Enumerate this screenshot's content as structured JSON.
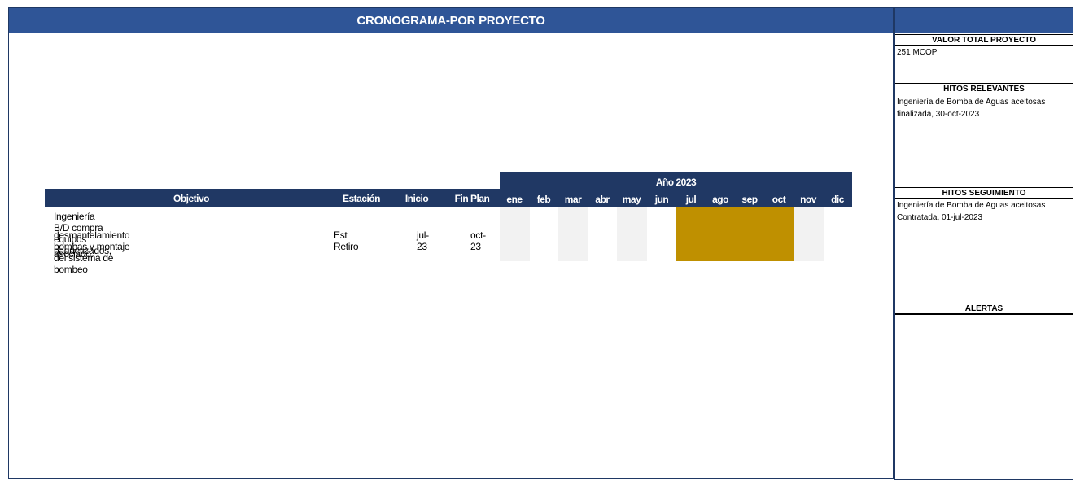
{
  "main": {
    "title": "CRONOGRAMA-POR PROYECTO"
  },
  "table": {
    "headers": {
      "objetivo": "Objetivo",
      "estacion": "Estación",
      "inicio": "Inicio",
      "fin_plan": "Fin Plan",
      "year": "Año 2023"
    },
    "months": [
      "ene",
      "feb",
      "mar",
      "abr",
      "may",
      "jun",
      "jul",
      "ago",
      "sep",
      "oct",
      "nov",
      "dic"
    ],
    "row": {
      "objetivo_lines": [
        "Ingeniería B/D compra equipos paquetizados,",
        "desmantelamiento bombas y montaje del sistema de bombeo",
        "asociado."
      ],
      "estacion": "Est Retiro",
      "inicio": "jul-23",
      "fin_plan": "oct-23"
    },
    "active_months": [
      "jul",
      "ago",
      "sep",
      "oct"
    ],
    "colors": {
      "header": "#203864",
      "title_bar": "#2f5597",
      "active": "#bf9000",
      "shaded": "#f2f2f2"
    }
  },
  "side": {
    "valor_total": {
      "label": "VALOR TOTAL PROYECTO",
      "value": "251 MCOP"
    },
    "hitos_relevantes": {
      "label": "HITOS RELEVANTES",
      "lines": [
        "Ingeniería de Bomba de Aguas aceitosas",
        "finalizada, 30-oct-2023"
      ]
    },
    "hitos_seguimiento": {
      "label": "HITOS SEGUIMIENTO",
      "lines": [
        "Ingeniería de Bomba de Aguas aceitosas",
        "Contratada, 01-jul-2023"
      ]
    },
    "alertas": {
      "label": "ALERTAS"
    }
  }
}
